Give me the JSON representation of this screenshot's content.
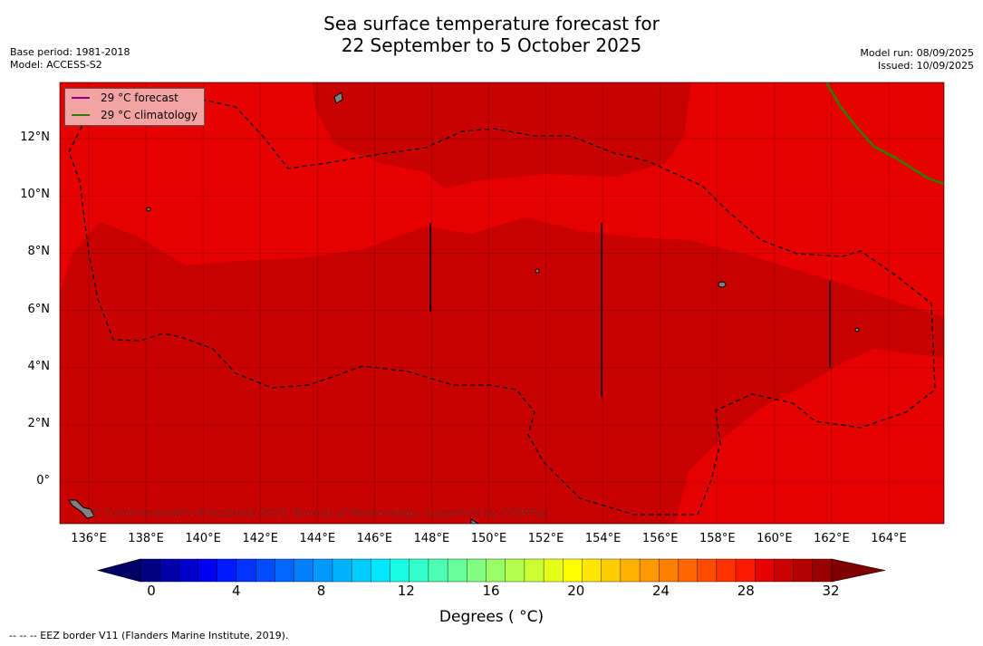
{
  "title_line1": "Sea surface temperature forecast for",
  "title_line2": "22 September to 5 October 2025",
  "base_period": "Base period: 1981-2018",
  "model": "Model: ACCESS-S2",
  "model_run": "Model run: 08/09/2025",
  "issued": "Issued: 10/09/2025",
  "legend": {
    "forecast": "29 °C  forecast",
    "climatology": "29 °C  climatology",
    "forecast_color": "#8b008b",
    "climatology_color": "#2e7d00"
  },
  "copyright": "© Commonwealth of Australia 2025, Bureau of Meteorology; supported by COSPPac",
  "lon_ticks": [
    "136°E",
    "138°E",
    "140°E",
    "142°E",
    "144°E",
    "146°E",
    "148°E",
    "150°E",
    "152°E",
    "154°E",
    "156°E",
    "158°E",
    "160°E",
    "162°E",
    "164°E"
  ],
  "lat_ticks": [
    "12°N",
    "10°N",
    "8°N",
    "6°N",
    "4°N",
    "2°N",
    "0°"
  ],
  "colorbar": {
    "ticks": [
      "0",
      "4",
      "8",
      "12",
      "16",
      "20",
      "24",
      "28",
      "32"
    ],
    "label": "Degrees ( °C)",
    "colors": [
      "#000080",
      "#0000a6",
      "#0000cc",
      "#0000f2",
      "#0019ff",
      "#0033ff",
      "#004cff",
      "#0066ff",
      "#0080ff",
      "#0099ff",
      "#00b3ff",
      "#00ccff",
      "#00e6ff",
      "#19ffe6",
      "#33ffcc",
      "#4cffb3",
      "#66ff99",
      "#80ff80",
      "#99ff66",
      "#b3ff4c",
      "#ccff33",
      "#e6ff19",
      "#ffff00",
      "#ffe600",
      "#ffcc00",
      "#ffb300",
      "#ff9900",
      "#ff8000",
      "#ff6600",
      "#ff4c00",
      "#ff3300",
      "#ff1a00",
      "#e60000",
      "#cc0000",
      "#b30000",
      "#990000"
    ],
    "under_color": "#000066",
    "over_color": "#800000"
  },
  "map_colors": {
    "warm": "#e60000",
    "warmer": "#c80000"
  },
  "footnote": "--  --  -- EEZ border V11 (Flanders Marine Institute, 2019)."
}
